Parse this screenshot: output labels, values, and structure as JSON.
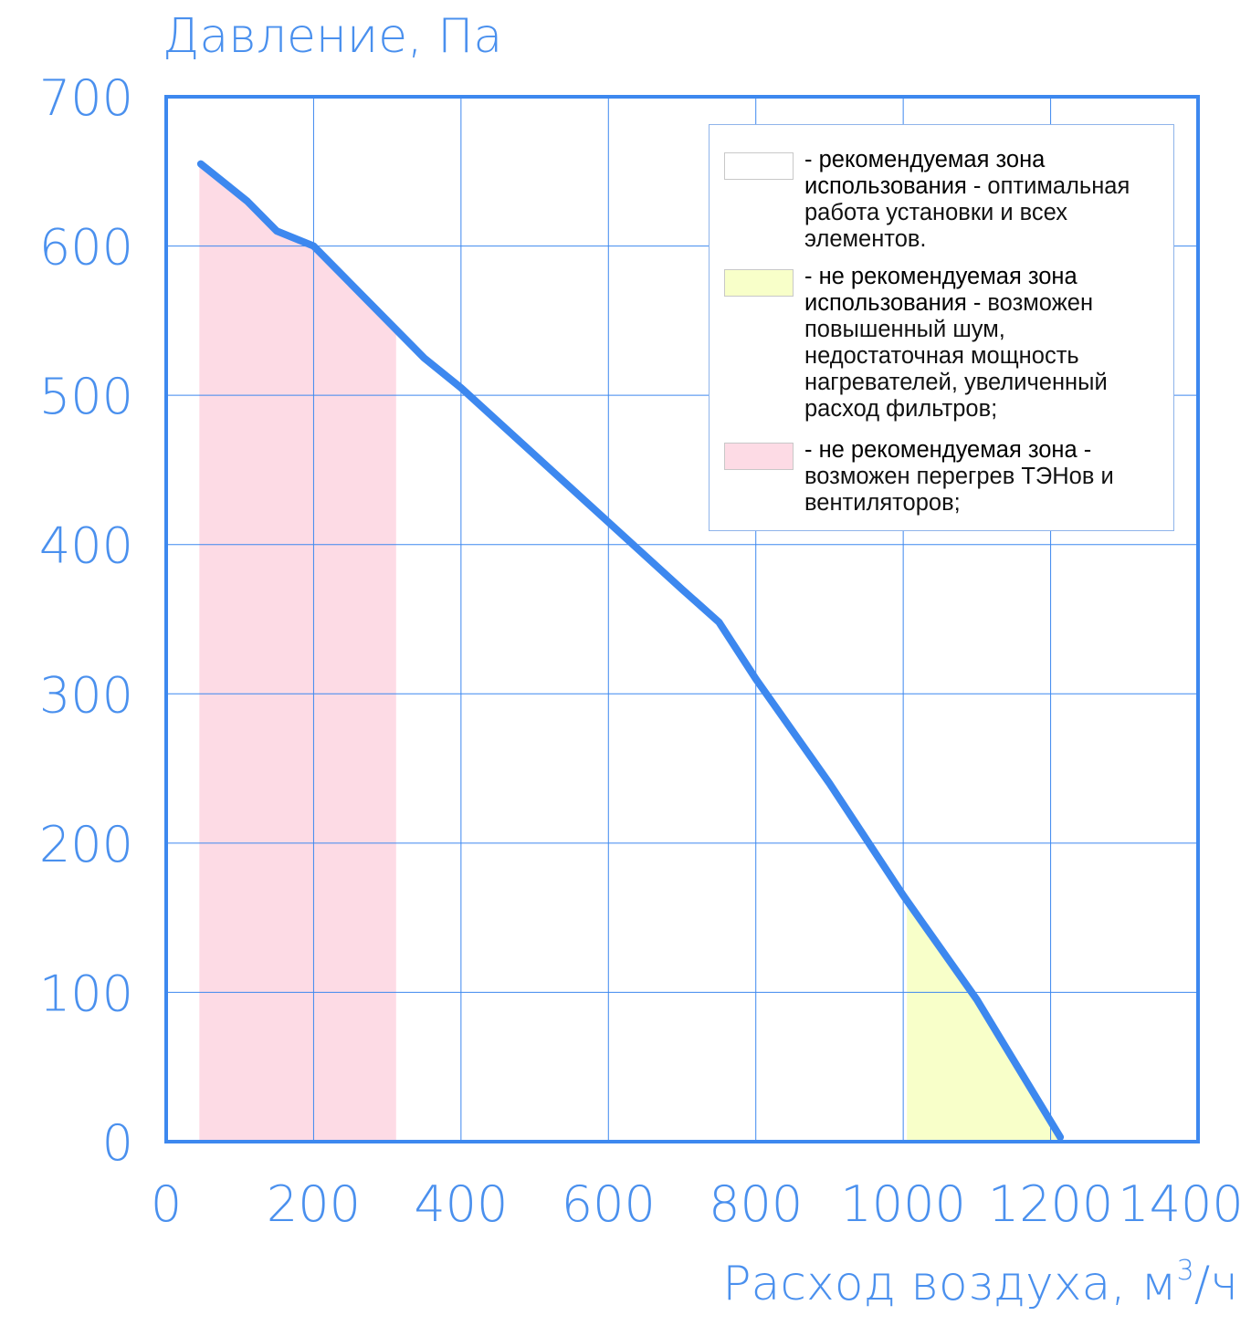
{
  "colors": {
    "axis": "#3d88ef",
    "grid": "#3d88ef",
    "curve": "#3d88ef",
    "text": "#4a90ee",
    "zone_pink": "#fddbe5",
    "zone_yellow": "#f8ffc9",
    "zone_white": "#ffffff"
  },
  "chart_data": {
    "type": "line",
    "ylabel": "Давление, Па",
    "xlabel_main": "Расход воздуха, м",
    "xlabel_sup": "3",
    "xlabel_tail": "/ч",
    "xlim": [
      0,
      1400
    ],
    "ylim": [
      0,
      700
    ],
    "x_ticks": [
      "0",
      "200",
      "400",
      "600",
      "800",
      "1000",
      "1200",
      "1400"
    ],
    "y_ticks": [
      "0",
      "100",
      "200",
      "300",
      "400",
      "500",
      "600",
      "700"
    ],
    "grid": true,
    "legend_position": "top-right",
    "series": [
      {
        "x": [
          47,
          110,
          150,
          200,
          250,
          350,
          400,
          500,
          600,
          700,
          750,
          800,
          900,
          1000,
          1100,
          1213
        ],
        "y": [
          655,
          630,
          610,
          600,
          575,
          525,
          505,
          460,
          415,
          370,
          348,
          310,
          240,
          165,
          95,
          3
        ]
      }
    ],
    "zones": [
      {
        "kind": "pink",
        "x_start": 45,
        "x_end": 312
      },
      {
        "kind": "yellow",
        "x_start": 1005,
        "x_end": 1213
      }
    ]
  },
  "legend": {
    "items": [
      {
        "swatch": "white",
        "lead": "- рекомендуемая зона использования",
        "rest": " - оптимальная работа установки и всех элементов."
      },
      {
        "swatch": "yellow",
        "lead": "- не рекомендуемая зона использования",
        "rest": " - возможен повышенный шум, недостаточная мощность нагревателей, увеличенный расход фильтров;"
      },
      {
        "swatch": "pink",
        "lead": "- не рекомендуемая зона",
        "rest": " - возможен перегрев ТЭНов и вентиляторов;"
      }
    ]
  }
}
